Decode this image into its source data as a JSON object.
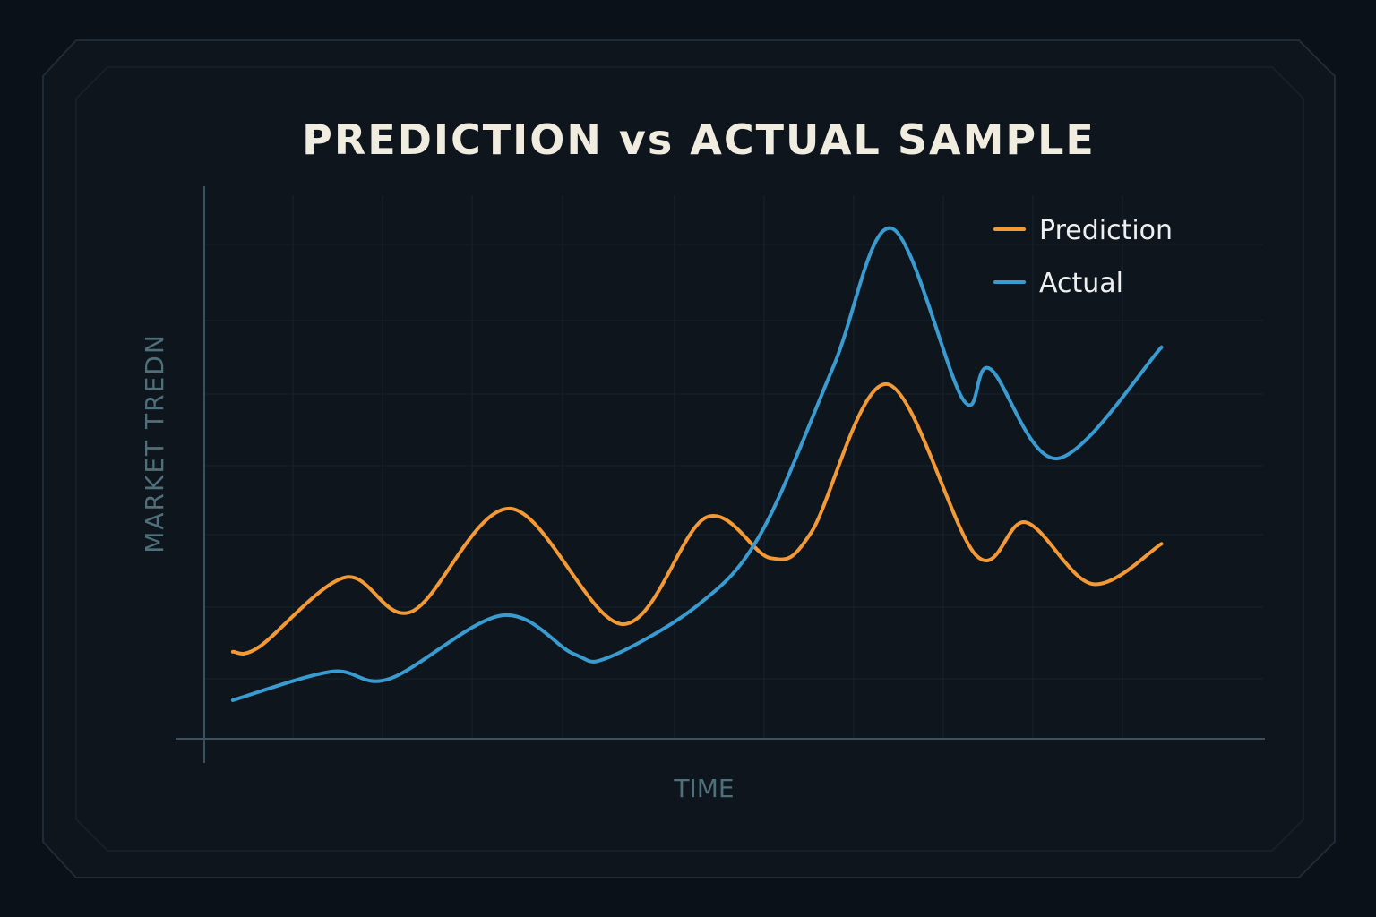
{
  "chart_data": {
    "type": "line",
    "title": "PREDICTION vs ACTUAL SAMPLE",
    "x_label": "TIME",
    "y_label": "MARKET TREDN",
    "xlim": [
      0,
      100
    ],
    "ylim": [
      0,
      100
    ],
    "legend": "top-right",
    "series": [
      {
        "name": "Prediction",
        "color": "#f39a36",
        "x": [
          2.7,
          5.2,
          13.3,
          19.6,
          28.9,
          39.5,
          47.4,
          53.5,
          57.3,
          64.5,
          72.9,
          77.6,
          83.9,
          90.4
        ],
        "values": [
          15.8,
          16.7,
          29.3,
          23.1,
          41.8,
          20.8,
          40.2,
          32.8,
          37.4,
          64.4,
          33.3,
          39.3,
          28.1,
          35.4
        ]
      },
      {
        "name": "Actual",
        "color": "#3a9bd0",
        "x": [
          2.7,
          12.0,
          17.5,
          28.1,
          34.9,
          38.2,
          46.7,
          52.6,
          59.4,
          64.9,
          71.7,
          74.2,
          80.6,
          90.4
        ],
        "values": [
          7.0,
          12.2,
          10.9,
          22.4,
          15.4,
          14.8,
          24.4,
          37.4,
          67.5,
          92.7,
          61.5,
          67.2,
          50.9,
          71.1
        ]
      }
    ]
  }
}
